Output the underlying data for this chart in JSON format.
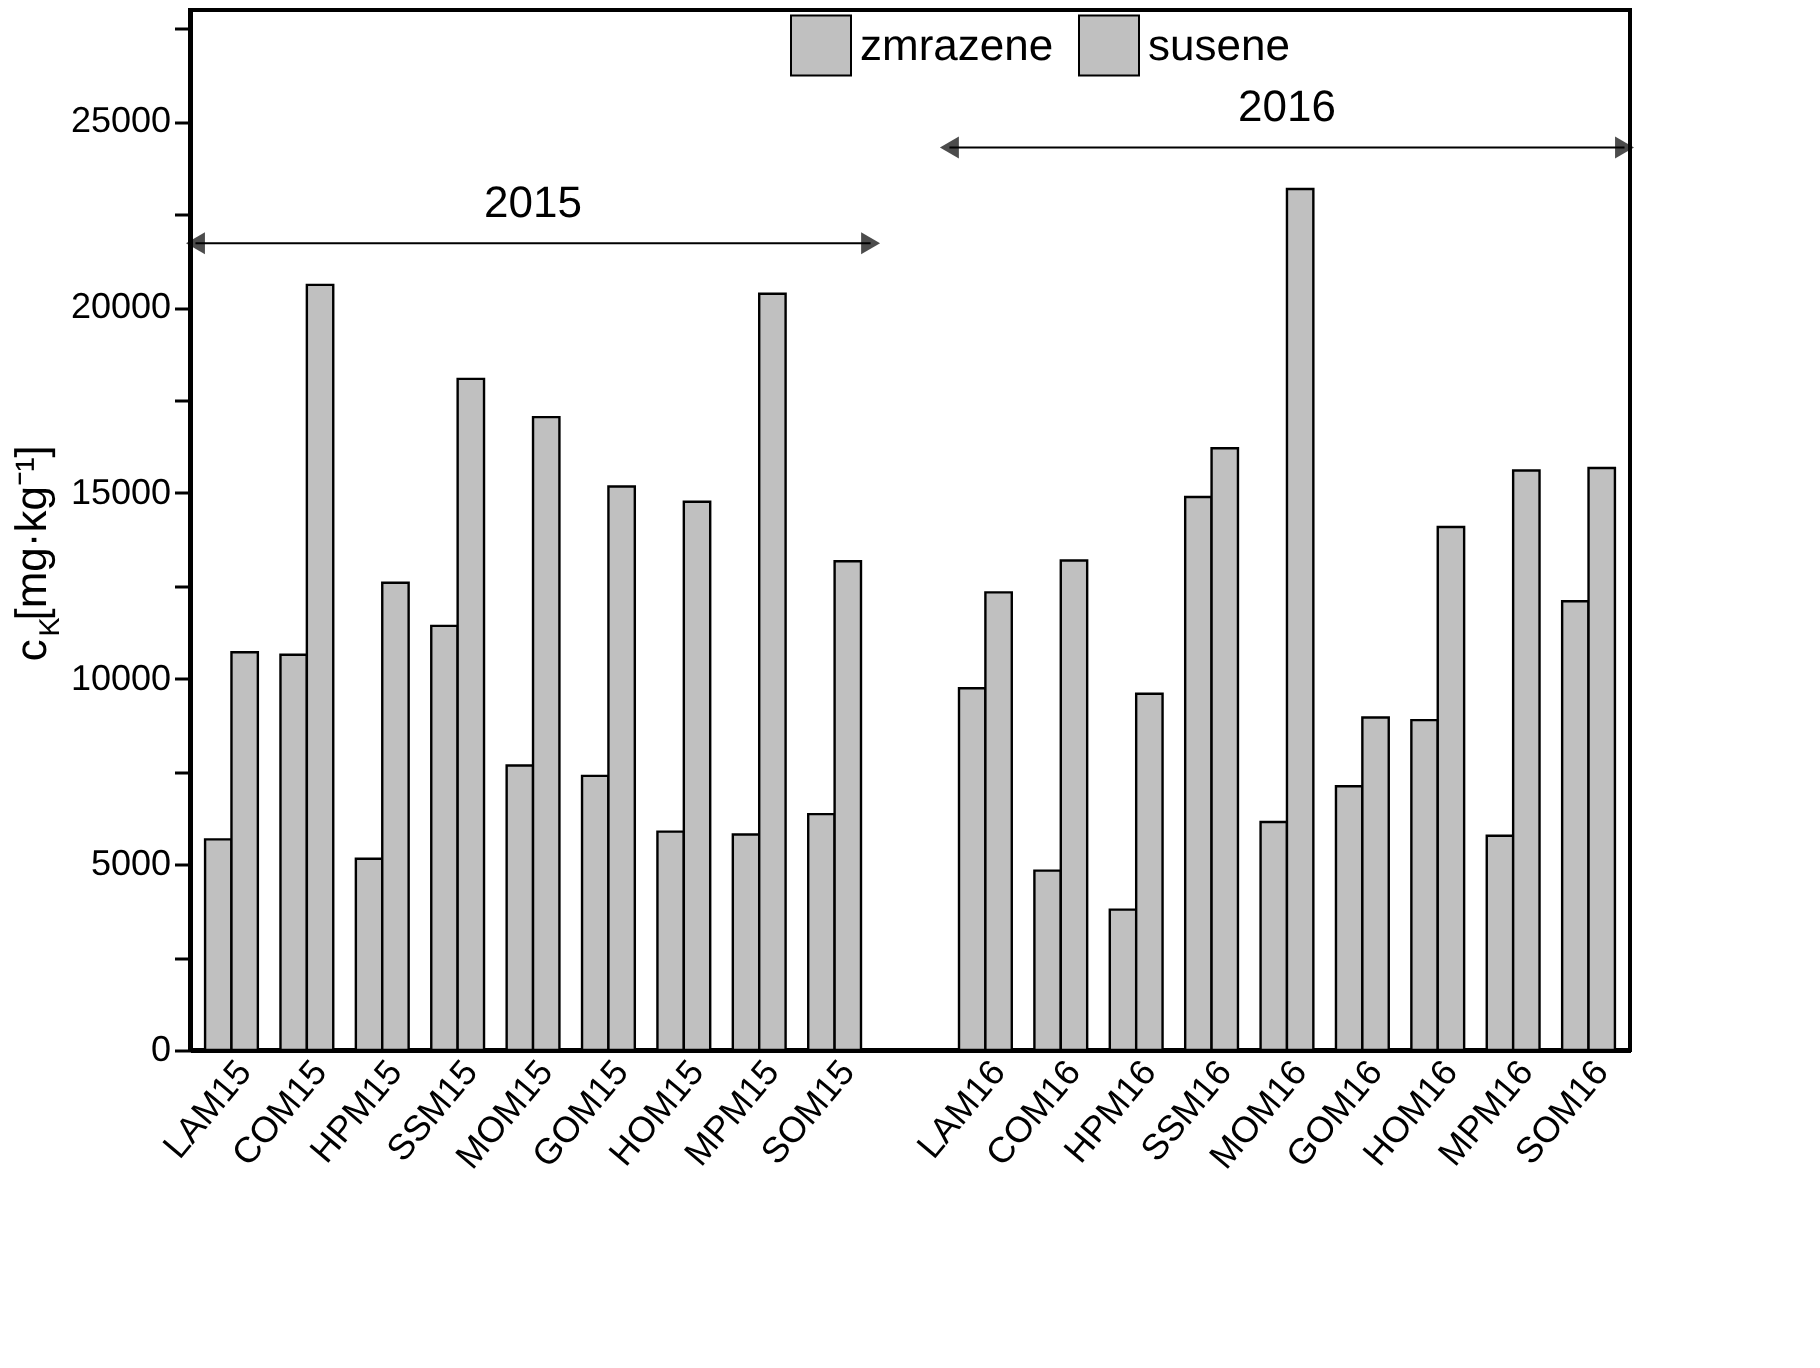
{
  "chart_data": {
    "type": "bar",
    "ylabel": "c$_{K}$[mg·kg⁻¹]",
    "categories": [
      "LAM15",
      "COM15",
      "HPM15",
      "SSM15",
      "MOM15",
      "GOM15",
      "HOM15",
      "MPM15",
      "SOM15",
      null,
      "LAM16",
      "COM16",
      "HPM16",
      "SSM16",
      "MOM16",
      "GOM16",
      "HOM16",
      "MPM16",
      "SOM16"
    ],
    "series": [
      {
        "name": "zmrazene",
        "color": "#c0c0c0",
        "values": [
          5670,
          10640,
          5150,
          11420,
          7660,
          7380,
          5880,
          5800,
          6350,
          null,
          9740,
          4830,
          3780,
          14890,
          6140,
          7100,
          8880,
          5770,
          12080
        ]
      },
      {
        "name": "susene",
        "color": "#c0c0c0",
        "values": [
          10710,
          20600,
          12580,
          18070,
          17040,
          15170,
          14760,
          20360,
          13160,
          null,
          12320,
          13180,
          9590,
          16200,
          23180,
          8950,
          14080,
          15600,
          15670
        ]
      }
    ],
    "ylim": [
      0,
      28000
    ],
    "yticks": [
      0,
      {
        "value": 2500,
        "label": null
      },
      5000,
      {
        "value": 7500,
        "label": null
      },
      10000,
      {
        "value": 12500,
        "label": null
      },
      15000,
      {
        "value": 17500,
        "label": null
      },
      20000,
      {
        "value": 22500,
        "label": null
      },
      25000,
      {
        "value": 27500,
        "label": null
      }
    ],
    "annotations": [
      "2015",
      "2016"
    ],
    "legend": "top",
    "grid": false
  }
}
